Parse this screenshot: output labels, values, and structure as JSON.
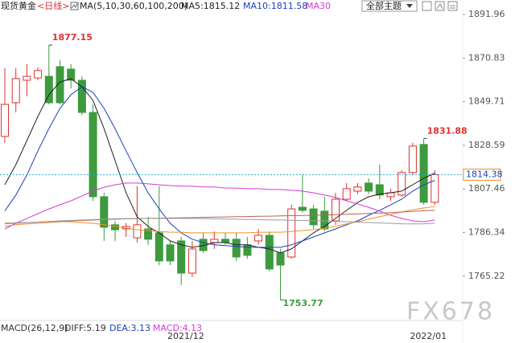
{
  "chart_data": {
    "type": "candlestick",
    "title": "现货黄金",
    "period": "<日线>",
    "indicator": "MA(5,10,30,60,100,200)",
    "theme_select": "全部主题",
    "watermark": "FX678",
    "up_color": "#e03030",
    "down_color": "#3d9a3d",
    "categories": [
      null,
      null,
      null,
      null,
      null,
      null,
      null,
      null,
      null,
      null,
      null,
      null,
      null,
      null,
      null,
      null,
      null,
      "2021/12",
      null,
      null,
      null,
      null,
      null,
      null,
      null,
      null,
      null,
      null,
      null,
      null,
      null,
      null,
      null,
      null,
      null,
      null,
      null,
      null,
      null,
      "2022/01"
    ],
    "open": [
      1832.9,
      1849.2,
      1860.1,
      1861.2,
      1862.0,
      1866.7,
      1865.5,
      1860.1,
      1844.5,
      1803.7,
      1790.1,
      1788.1,
      1783.8,
      1788.1,
      1786.2,
      1780.4,
      1782.3,
      1766.7,
      1783.1,
      1781.5,
      1783.1,
      1783.1,
      1780.4,
      1782.3,
      1785.0,
      1776.5,
      1774.5,
      1798.6,
      1797.8,
      1796.7,
      1792.0,
      1802.5,
      1806.4,
      1810.3,
      1809.5,
      1803.7,
      1804.5,
      1815.4,
      1829.0,
      1801.0
    ],
    "high": [
      1865.9,
      1865.9,
      1867.9,
      1866.3,
      1877.15,
      1869.8,
      1867.9,
      1862.0,
      1848.4,
      1805.6,
      1792.0,
      1790.9,
      1808.8,
      1794.0,
      1808.8,
      1782.3,
      1784.2,
      1782.3,
      1786.2,
      1786.9,
      1786.2,
      1786.2,
      1784.2,
      1788.1,
      1786.9,
      1778.4,
      1799.8,
      1814.2,
      1799.8,
      1803.7,
      1805.6,
      1810.3,
      1810.3,
      1812.6,
      1819.3,
      1807.6,
      1816.5,
      1829.8,
      1831.88,
      1816.5
    ],
    "low": [
      1829.8,
      1844.5,
      1852.3,
      1860.1,
      1848.4,
      1848.4,
      1856.2,
      1843.3,
      1801.7,
      1782.3,
      1782.3,
      1784.2,
      1781.5,
      1780.4,
      1770.6,
      1770.6,
      1760.9,
      1764.8,
      1776.5,
      1778.4,
      1780.4,
      1772.6,
      1773.7,
      1780.4,
      1767.5,
      1753.77,
      1773.7,
      1795.9,
      1788.1,
      1786.9,
      1790.1,
      1801.7,
      1804.9,
      1804.9,
      1802.5,
      1801.7,
      1803.7,
      1814.2,
      1799.8,
      1799.8
    ],
    "close": [
      1848.4,
      1860.9,
      1862.0,
      1864.8,
      1849.2,
      1849.2,
      1860.1,
      1844.5,
      1803.7,
      1788.9,
      1787.7,
      1789.3,
      1790.1,
      1783.1,
      1772.6,
      1772.6,
      1766.7,
      1778.4,
      1777.6,
      1783.1,
      1781.5,
      1774.5,
      1775.3,
      1785.0,
      1768.7,
      1770.6,
      1797.8,
      1797.1,
      1790.1,
      1788.1,
      1802.5,
      1807.6,
      1808.4,
      1806.4,
      1804.5,
      1805.6,
      1815.4,
      1828.2,
      1801.0,
      1814.38
    ],
    "series": [
      {
        "name": "MA5:1815.12",
        "color": "#222222",
        "values": [
          1809.5,
          1819.2,
          1830.9,
          1842.6,
          1853.1,
          1859.3,
          1860.8,
          1856.9,
          1850.3,
          1836.7,
          1821.2,
          1805.6,
          1794.0,
          1789.3,
          1786.2,
          1782.3,
          1780.4,
          1779.2,
          1780.0,
          1781.5,
          1781.5,
          1780.4,
          1780.4,
          1779.2,
          1778.4,
          1776.5,
          1778.4,
          1782.3,
          1786.2,
          1789.3,
          1793.2,
          1797.1,
          1800.9,
          1803.7,
          1804.9,
          1805.6,
          1806.4,
          1809.5,
          1812.6,
          1815.12
        ]
      },
      {
        "name": "MA10:1811.58",
        "color": "#1a3fc0",
        "values": [
          1796.8,
          1804.5,
          1814.2,
          1825.9,
          1836.7,
          1846.5,
          1853.1,
          1857.0,
          1854.2,
          1846.5,
          1836.7,
          1825.9,
          1815.4,
          1805.6,
          1797.8,
          1790.8,
          1786.2,
          1783.1,
          1781.5,
          1780.4,
          1780.0,
          1779.6,
          1779.2,
          1779.2,
          1779.2,
          1779.2,
          1780.4,
          1782.3,
          1784.2,
          1786.2,
          1788.1,
          1790.1,
          1792.0,
          1794.7,
          1797.1,
          1799.8,
          1802.5,
          1806.4,
          1809.5,
          1811.58
        ]
      },
      {
        "name": "MA30",
        "color": "#d63bd6",
        "values": [
          1788.1,
          1790.8,
          1793.2,
          1795.5,
          1797.8,
          1799.8,
          1801.7,
          1804.1,
          1806.4,
          1808.3,
          1809.5,
          1810.3,
          1810.3,
          1809.9,
          1809.5,
          1809.1,
          1808.8,
          1808.8,
          1808.4,
          1808.4,
          1807.9,
          1807.9,
          1807.6,
          1807.6,
          1807.2,
          1807.2,
          1806.8,
          1806.4,
          1805.6,
          1804.5,
          1803.3,
          1801.7,
          1800.2,
          1798.6,
          1796.7,
          1794.7,
          1793.2,
          1792.0,
          1791.6,
          1792.4
        ]
      },
      {
        "color": "#f0902a",
        "values": [
          1789.3,
          1790.1,
          1790.5,
          1790.8,
          1791.2,
          1791.6,
          1791.6,
          1791.2,
          1790.8,
          1790.1,
          1789.3,
          1788.5,
          1787.7,
          1787.3,
          1786.9,
          1786.5,
          1786.5,
          1786.2,
          1786.2,
          1786.2,
          1786.2,
          1786.2,
          1786.2,
          1786.5,
          1786.5,
          1786.5,
          1786.9,
          1787.3,
          1787.7,
          1788.5,
          1789.3,
          1790.5,
          1791.6,
          1792.8,
          1794.0,
          1795.1,
          1796.3,
          1797.4,
          1798.2,
          1799.0
        ]
      },
      {
        "color": "#c06050",
        "values": [
          1790.8,
          1791.0,
          1791.2,
          1791.4,
          1791.6,
          1791.8,
          1792.0,
          1792.2,
          1792.4,
          1792.6,
          1792.8,
          1793.0,
          1793.1,
          1793.2,
          1793.3,
          1793.4,
          1793.5,
          1793.6,
          1793.7,
          1793.8,
          1793.9,
          1794.0,
          1794.1,
          1794.2,
          1794.3,
          1794.4,
          1794.5,
          1794.6,
          1794.7,
          1794.8,
          1795.0,
          1795.2,
          1795.4,
          1795.6,
          1795.8,
          1796.0,
          1796.3,
          1796.6,
          1796.9,
          1797.1
        ]
      },
      {
        "color": "#9a9a9a",
        "values": [
          1790.5,
          1790.8,
          1791.1,
          1791.4,
          1791.7,
          1792.0,
          1792.2,
          1792.4,
          1792.6,
          1792.8,
          1793.0,
          1793.1,
          1793.2,
          1793.2,
          1793.2,
          1793.2,
          1793.2,
          1793.2,
          1793.1,
          1793.0,
          1792.9,
          1792.8,
          1792.7,
          1792.6,
          1792.5,
          1792.4,
          1792.3,
          1792.2,
          1792.1,
          1792.0,
          1791.8,
          1791.6,
          1791.4,
          1791.2,
          1791.0,
          1790.8,
          1790.6,
          1790.5,
          1790.6,
          1790.9
        ]
      }
    ],
    "annotations": [
      1877.15,
      1831.88,
      1753.77
    ],
    "last_price": 1814.38,
    "ylim": [
      1744.14,
      1898.96
    ],
    "yticks": [
      1891.96,
      1870.83,
      1849.71,
      1828.59,
      1807.46,
      1786.34,
      1765.22
    ],
    "macd": [
      {
        "text": "MACD(26,12,9)",
        "color": "#333333"
      },
      {
        "text": "DIFF:5.19",
        "color": "#333333"
      },
      {
        "text": "DEA:3.13",
        "color": "#1a3fc0"
      },
      {
        "text": "MACD:4.13",
        "color": "#d63bd6"
      }
    ]
  }
}
